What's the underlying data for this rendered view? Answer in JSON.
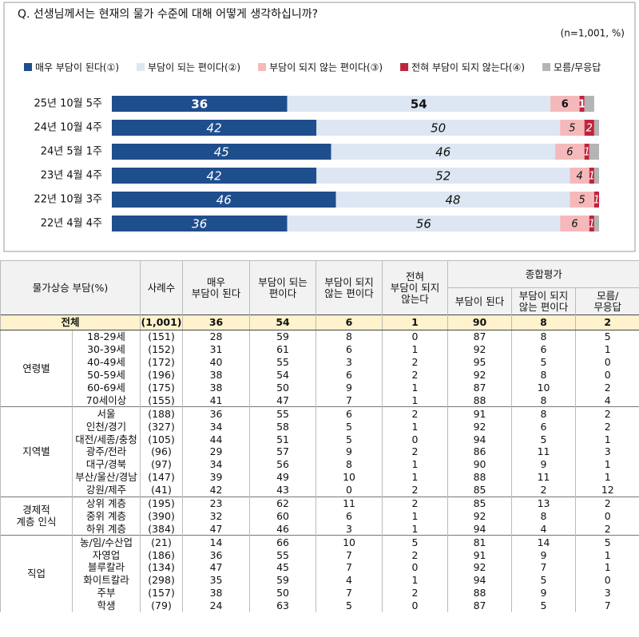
{
  "chart_data": {
    "type": "bar",
    "orientation": "horizontal",
    "stacked": true,
    "title": "Q. 선생님께서는 현재의 물가 수준에 대해 어떻게 생각하십니까?",
    "note": "(n=1,001, %)",
    "categories": [
      "25년 10월 5주",
      "24년 10월 4주",
      "24년 5월 1주",
      "23년 4월 4주",
      "22년 10월 3주",
      "22년 4월 4주"
    ],
    "series": [
      {
        "name": "매우 부담이 된다(①)",
        "color": "#1f4e8c",
        "values": [
          36,
          42,
          45,
          42,
          46,
          36
        ]
      },
      {
        "name": "부담이 되는 편이다(②)",
        "color": "#dde7f3",
        "values": [
          54,
          50,
          46,
          52,
          48,
          56
        ]
      },
      {
        "name": "부담이 되지 않는 편이다(③)",
        "color": "#f5b9bb",
        "values": [
          6,
          5,
          6,
          4,
          5,
          6
        ]
      },
      {
        "name": "전혀 부담이 되지 않는다(④)",
        "color": "#c0243c",
        "values": [
          1,
          2,
          1,
          1,
          1,
          1
        ]
      },
      {
        "name": "모름/무응답",
        "color": "#b4b4b4",
        "values": [
          2,
          1,
          2,
          1,
          0,
          1
        ],
        "show_labels": false
      }
    ],
    "xlim": [
      0,
      100
    ]
  },
  "table": {
    "header": {
      "title": "물가상승 부담(%)",
      "n": "사례수",
      "cols": [
        "매우\n부담이 된다",
        "부담이 되는\n편이다",
        "부담이 되지\n않는 편이다",
        "전혀\n부담이 되지\n않는다"
      ],
      "summary": "종합평가",
      "summary_cols": [
        "부담이 된다",
        "부담이 되지\n않는 편이다",
        "모름/\n무응답"
      ]
    },
    "total": [
      "전체",
      "(1,001)",
      36,
      54,
      6,
      1,
      90,
      8,
      2
    ],
    "groups": [
      {
        "name": "연령별",
        "rows": [
          [
            "18-29세",
            "(151)",
            28,
            59,
            8,
            0,
            87,
            8,
            5
          ],
          [
            "30-39세",
            "(152)",
            31,
            61,
            6,
            1,
            92,
            6,
            1
          ],
          [
            "40-49세",
            "(172)",
            40,
            55,
            3,
            2,
            95,
            5,
            0
          ],
          [
            "50-59세",
            "(196)",
            38,
            54,
            6,
            2,
            92,
            8,
            0
          ],
          [
            "60-69세",
            "(175)",
            38,
            50,
            9,
            1,
            87,
            10,
            2
          ],
          [
            "70세이상",
            "(155)",
            41,
            47,
            7,
            1,
            88,
            8,
            4
          ]
        ]
      },
      {
        "name": "지역별",
        "rows": [
          [
            "서울",
            "(188)",
            36,
            55,
            6,
            2,
            91,
            8,
            2
          ],
          [
            "인천/경기",
            "(327)",
            34,
            58,
            5,
            1,
            92,
            6,
            2
          ],
          [
            "대전/세종/충청",
            "(105)",
            44,
            51,
            5,
            0,
            94,
            5,
            1
          ],
          [
            "광주/전라",
            "(96)",
            29,
            57,
            9,
            2,
            86,
            11,
            3
          ],
          [
            "대구/경북",
            "(97)",
            34,
            56,
            8,
            1,
            90,
            9,
            1
          ],
          [
            "부산/울산/경남",
            "(147)",
            39,
            49,
            10,
            1,
            88,
            11,
            1
          ],
          [
            "강원/제주",
            "(41)",
            42,
            43,
            0,
            2,
            85,
            2,
            12
          ]
        ]
      },
      {
        "name": "경제적\n계층 인식",
        "rows": [
          [
            "상위 계층",
            "(195)",
            23,
            62,
            11,
            2,
            85,
            13,
            2
          ],
          [
            "중위 계층",
            "(390)",
            32,
            60,
            6,
            1,
            92,
            8,
            0
          ],
          [
            "하위 계층",
            "(384)",
            47,
            46,
            3,
            1,
            94,
            4,
            2
          ]
        ]
      },
      {
        "name": "직업",
        "rows": [
          [
            "농/임/수산업",
            "(21)",
            14,
            66,
            10,
            5,
            81,
            14,
            5
          ],
          [
            "자영업",
            "(186)",
            36,
            55,
            7,
            2,
            91,
            9,
            1
          ],
          [
            "블루칼라",
            "(134)",
            47,
            45,
            7,
            0,
            92,
            7,
            1
          ],
          [
            "화이트칼라",
            "(298)",
            35,
            59,
            4,
            1,
            94,
            5,
            0
          ],
          [
            "주부",
            "(157)",
            38,
            50,
            7,
            2,
            88,
            9,
            3
          ],
          [
            "학생",
            "(79)",
            24,
            63,
            5,
            0,
            87,
            5,
            7
          ]
        ]
      }
    ]
  }
}
